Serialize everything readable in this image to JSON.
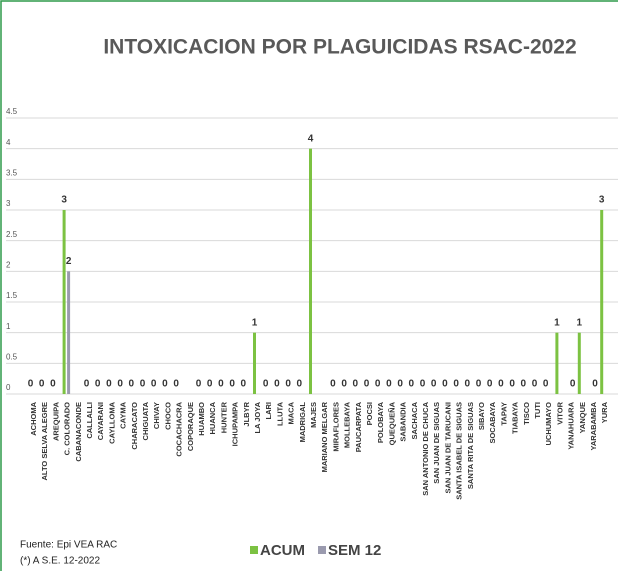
{
  "chart_data": {
    "type": "bar",
    "title": "INTOXICACION POR PLAGUICIDAS RSAC-2022",
    "categories": [
      "ACHOMA",
      "ALTO SELVA ALEGRE",
      "AREQUIPA",
      "C. COLORADO",
      "CABANACONDE",
      "CALLALLI",
      "CAYARANI",
      "CAYLLOMA",
      "CAYMA",
      "CHARACATO",
      "CHIGUATA",
      "CHIVAY",
      "CHOCO",
      "COCACHACRA",
      "COPORAQUE",
      "HUAMBO",
      "HUANCA",
      "HUNTER",
      "ICHUPAMPA",
      "JLBYR",
      "LA JOYA",
      "LARI",
      "LLUTA",
      "MACA",
      "MADRIGAL",
      "MAJES",
      "MARIANO MELGAR",
      "MIRAFLORES",
      "MOLLEBAYA",
      "PAUCARPATA",
      "POCSI",
      "POLOBAYA",
      "QUEQUEÑA",
      "SABANDIA",
      "SACHACA",
      "SAN ANTONIO DE CHUCA",
      "SAN JUAN DE SIGUAS",
      "SAN JUAN DE TARUCANI",
      "SANTA ISABEL DE SIGUAS",
      "SANTA RITA DE SIGUAS",
      "SIBAYO",
      "SOCABAYA",
      "TAPAY",
      "TIABAYA",
      "TISCO",
      "TUTI",
      "UCHUMAYO",
      "VITOR",
      "YANAHUARA",
      "YANQUE",
      "YARABAMBA",
      "YURA"
    ],
    "series": [
      {
        "name": "ACUM",
        "color": "#7cc242",
        "values": [
          0,
          0,
          0,
          3,
          null,
          0,
          0,
          0,
          0,
          0,
          0,
          0,
          0,
          0,
          null,
          0,
          0,
          0,
          0,
          0,
          1,
          0,
          0,
          0,
          0,
          4,
          null,
          0,
          0,
          0,
          0,
          0,
          0,
          0,
          0,
          0,
          0,
          0,
          0,
          0,
          0,
          0,
          0,
          0,
          0,
          0,
          0,
          1,
          null,
          1,
          null,
          3
        ]
      },
      {
        "name": "SEM 12",
        "color": "#9a9aae",
        "values": [
          null,
          null,
          null,
          2,
          null,
          null,
          null,
          null,
          null,
          null,
          null,
          null,
          null,
          null,
          null,
          null,
          null,
          null,
          null,
          null,
          null,
          null,
          null,
          null,
          null,
          null,
          null,
          null,
          null,
          null,
          null,
          null,
          null,
          null,
          null,
          null,
          null,
          null,
          null,
          null,
          null,
          null,
          null,
          null,
          null,
          null,
          null,
          null,
          0,
          null,
          0,
          null
        ]
      }
    ],
    "ylim": [
      0,
      4.5
    ],
    "yticks": [
      0,
      0.5,
      1,
      1.5,
      2,
      2.5,
      3,
      3.5,
      4,
      4.5
    ],
    "grid": true,
    "notes": [
      "Fuente: Epi VEA RAC",
      "(*) A S.E. 12-2022"
    ]
  }
}
